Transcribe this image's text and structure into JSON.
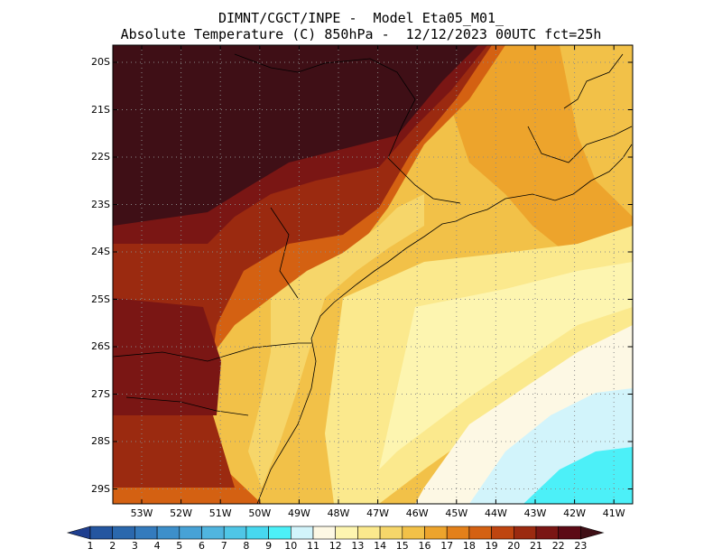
{
  "header": {
    "title_line1": "DIMNT/CGCT/INPE -  Model Eta05_M01_",
    "title_line2": "Absolute Temperature (C) 850hPa -  12/12/2023 00UTC fct=25h"
  },
  "map": {
    "lat_labels": [
      "20S",
      "21S",
      "22S",
      "23S",
      "24S",
      "25S",
      "26S",
      "27S",
      "28S",
      "29S"
    ],
    "lon_labels": [
      "53W",
      "52W",
      "51W",
      "50W",
      "49W",
      "48W",
      "47W",
      "46W",
      "45W",
      "44W",
      "43W",
      "42W",
      "41W"
    ],
    "grid": true
  },
  "colorbar": {
    "labels": [
      "1",
      "2",
      "3",
      "4",
      "5",
      "6",
      "7",
      "8",
      "9",
      "10",
      "11",
      "12",
      "13",
      "14",
      "15",
      "16",
      "17",
      "18",
      "19",
      "20",
      "21",
      "22",
      "23"
    ],
    "colors": [
      "#1f3f8f",
      "#2456a0",
      "#2b68ad",
      "#347bbd",
      "#3d8fca",
      "#47a2d6",
      "#50b5df",
      "#4fc6e6",
      "#47d8ef",
      "#4cf0f8",
      "#d2f4fb",
      "#fdf8e4",
      "#fdf5b0",
      "#fbe98d",
      "#f6d66a",
      "#f2c148",
      "#eda42c",
      "#e3801a",
      "#d46112",
      "#bf4510",
      "#9b2a10",
      "#7a1614",
      "#5c0a15",
      "#3f0f16"
    ]
  }
}
